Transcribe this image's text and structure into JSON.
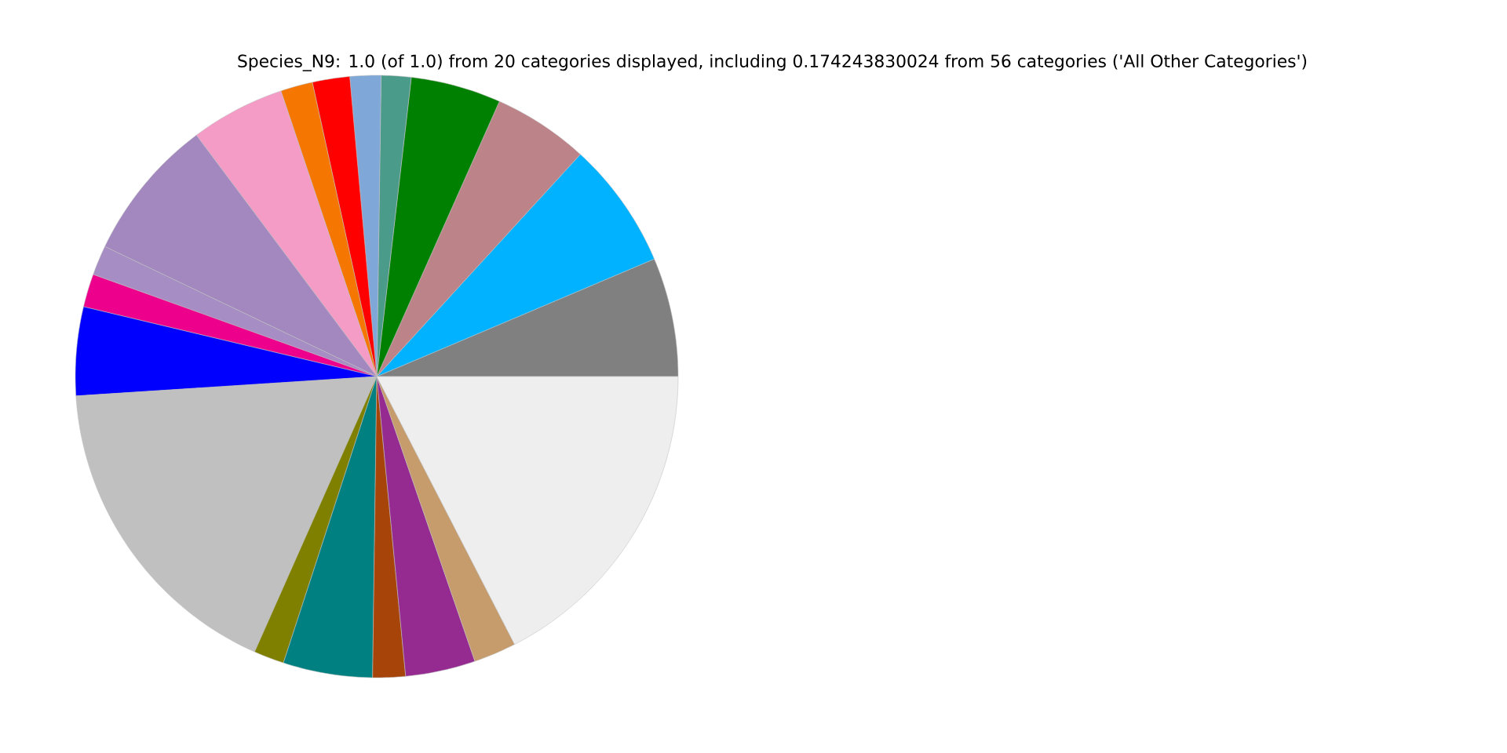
{
  "chart_data": {
    "type": "pie",
    "title": "Species_N9: 1.0 (of 1.0) from 20 categories displayed, including 0.174243830024 from 56 categories ('All Other Categories')",
    "categories": [
      null,
      null,
      null,
      null,
      null,
      null,
      null,
      null,
      null,
      null,
      null,
      null,
      null,
      null,
      null,
      null,
      null,
      null,
      null,
      null
    ],
    "values": [
      6.38,
      6.82,
      5.13,
      4.84,
      1.6,
      1.66,
      2.0,
      1.72,
      5.06,
      7.69,
      1.6,
      1.78,
      4.75,
      17.33,
      1.63,
      4.79,
      1.75,
      3.75,
      2.28,
      17.44
    ],
    "colors": [
      "#808080",
      "#00b2ff",
      "#bc8389",
      "#008000",
      "#4b9b8b",
      "#7fa8d8",
      "#ff0000",
      "#f57600",
      "#f49cc6",
      "#a388bf",
      "#a68dc3",
      "#ec008c",
      "#0000ff",
      "#c0c0c0",
      "#808000",
      "#008080",
      "#a6440a",
      "#952a91",
      "#c69c6d",
      "#eeeeee"
    ]
  }
}
